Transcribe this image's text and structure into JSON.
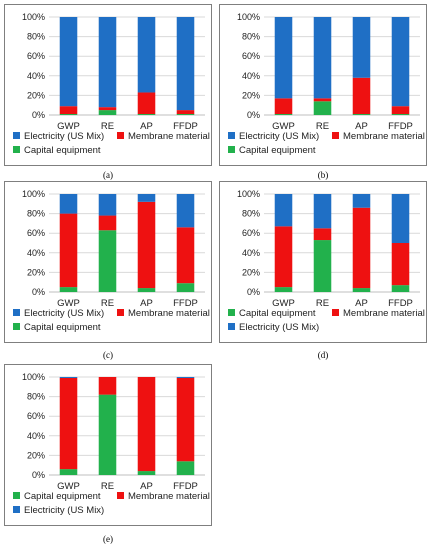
{
  "colors": {
    "electricity": "#1f6fc5",
    "membrane": "#ee1111",
    "capital": "#22b14c",
    "grid": "#d9d9d9",
    "axis": "#bfbfbf"
  },
  "chart_data": [
    {
      "type": "bar",
      "stacked": true,
      "caption": "(a)",
      "categories": [
        "GWP",
        "RE",
        "AP",
        "FFDP"
      ],
      "ylim": [
        0,
        100
      ],
      "yticks": [
        "0%",
        "20%",
        "40%",
        "60%",
        "80%",
        "100%"
      ],
      "series": [
        {
          "name": "Capital equipment",
          "color_key": "capital",
          "values": [
            1,
            5,
            1,
            1
          ]
        },
        {
          "name": "Membrane material",
          "color_key": "membrane",
          "values": [
            8,
            3,
            22,
            4
          ]
        },
        {
          "name": "Electricity (US Mix)",
          "color_key": "electricity",
          "values": [
            91,
            92,
            77,
            95
          ]
        }
      ],
      "legend": [
        "Electricity (US Mix)",
        "Membrane material",
        "Capital equipment"
      ]
    },
    {
      "type": "bar",
      "stacked": true,
      "caption": "(b)",
      "categories": [
        "GWP",
        "RE",
        "AP",
        "FFDP"
      ],
      "ylim": [
        0,
        100
      ],
      "yticks": [
        "0%",
        "20%",
        "40%",
        "60%",
        "80%",
        "100%"
      ],
      "series": [
        {
          "name": "Capital equipment",
          "color_key": "capital",
          "values": [
            1,
            14,
            1,
            1
          ]
        },
        {
          "name": "Membrane material",
          "color_key": "membrane",
          "values": [
            16,
            3,
            37,
            8
          ]
        },
        {
          "name": "Electricity (US Mix)",
          "color_key": "electricity",
          "values": [
            83,
            83,
            62,
            91
          ]
        }
      ],
      "legend": [
        "Electricity (US Mix)",
        "Membrane material",
        "Capital equipment"
      ]
    },
    {
      "type": "bar",
      "stacked": true,
      "caption": "(c)",
      "categories": [
        "GWP",
        "RE",
        "AP",
        "FFDP"
      ],
      "ylim": [
        0,
        100
      ],
      "yticks": [
        "0%",
        "20%",
        "40%",
        "60%",
        "80%",
        "100%"
      ],
      "series": [
        {
          "name": "Capital equipment",
          "color_key": "capital",
          "values": [
            5,
            63,
            4,
            9
          ]
        },
        {
          "name": "Membrane material",
          "color_key": "membrane",
          "values": [
            75,
            15,
            88,
            57
          ]
        },
        {
          "name": "Electricity (US Mix)",
          "color_key": "electricity",
          "values": [
            20,
            22,
            8,
            34
          ]
        }
      ],
      "legend": [
        "Electricity (US Mix)",
        "Membrane material",
        "Capital equipment"
      ]
    },
    {
      "type": "bar",
      "stacked": true,
      "caption": "(d)",
      "categories": [
        "GWP",
        "RE",
        "AP",
        "FFDP"
      ],
      "ylim": [
        0,
        100
      ],
      "yticks": [
        "0%",
        "20%",
        "40%",
        "60%",
        "80%",
        "100%"
      ],
      "series": [
        {
          "name": "Capital equipment",
          "color_key": "capital",
          "values": [
            5,
            53,
            4,
            7
          ]
        },
        {
          "name": "Membrane material",
          "color_key": "membrane",
          "values": [
            62,
            12,
            82,
            43
          ]
        },
        {
          "name": "Electricity (US Mix)",
          "color_key": "electricity",
          "values": [
            33,
            35,
            14,
            50
          ]
        }
      ],
      "legend": [
        "Capital equipment",
        "Membrane material",
        "Electricity (US Mix)"
      ]
    },
    {
      "type": "bar",
      "stacked": true,
      "caption": "(e)",
      "categories": [
        "GWP",
        "RE",
        "AP",
        "FFDP"
      ],
      "ylim": [
        0,
        100
      ],
      "yticks": [
        "0%",
        "20%",
        "40%",
        "60%",
        "80%",
        "100%"
      ],
      "series": [
        {
          "name": "Capital equipment",
          "color_key": "capital",
          "values": [
            6,
            82,
            4,
            14
          ]
        },
        {
          "name": "Membrane material",
          "color_key": "membrane",
          "values": [
            93,
            18,
            96,
            85
          ]
        },
        {
          "name": "Electricity (US Mix)",
          "color_key": "electricity",
          "values": [
            1,
            0,
            0,
            1
          ]
        }
      ],
      "legend": [
        "Capital equipment",
        "Membrane material",
        "Electricity (US Mix)"
      ]
    }
  ]
}
